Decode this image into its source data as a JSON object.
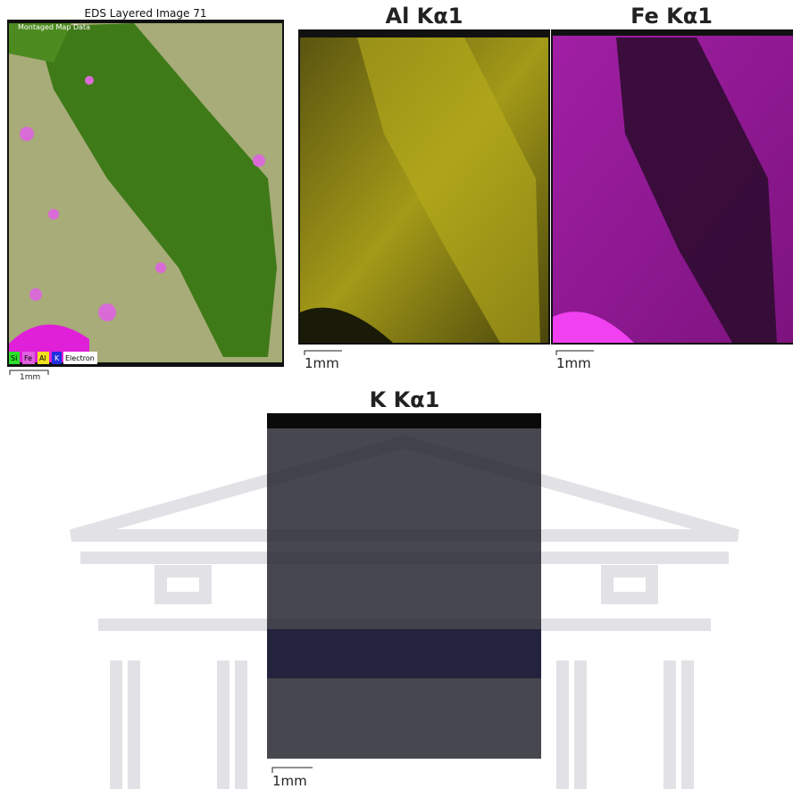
{
  "panels": [
    {
      "title": "EDS Layered Image 71",
      "subtitle": "Montaged Map Data",
      "legend": [
        "Si",
        "Fe",
        "Al",
        "K",
        "Electron"
      ],
      "scale": "1mm"
    },
    {
      "title": "Al Kα1",
      "scale": "1mm"
    },
    {
      "title": "Fe Kα1",
      "scale": "1mm"
    },
    {
      "title": "K Kα1",
      "scale": "1mm"
    }
  ]
}
